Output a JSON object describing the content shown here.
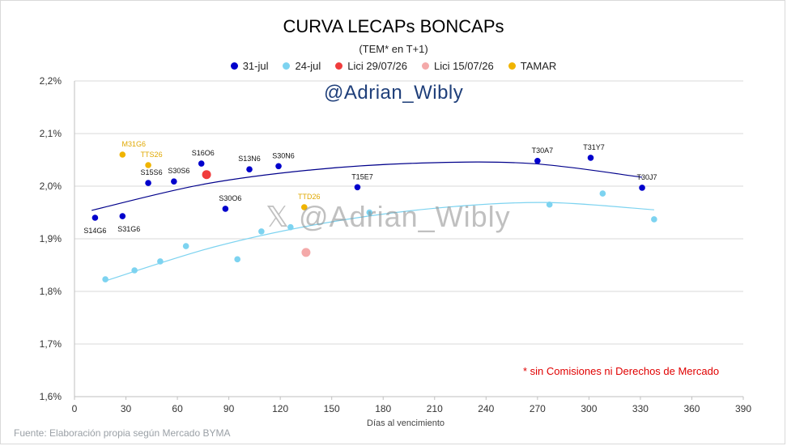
{
  "header": {
    "title": "CURVA LECAPs BONCAPs",
    "subtitle": "(TEM* en T+1)"
  },
  "legend": [
    {
      "label": "31-jul",
      "color": "#0000cc"
    },
    {
      "label": "24-jul",
      "color": "#7dd3f0"
    },
    {
      "label": "Lici 29/07/26",
      "color": "#f03c3c"
    },
    {
      "label": "Lici 15/07/26",
      "color": "#f4a9a9"
    },
    {
      "label": "TAMAR",
      "color": "#f0b400"
    }
  ],
  "watermarks": {
    "top": "@Adrian_Wibly",
    "middle": "@Adrian_Wibly",
    "middle_icon": "x-logo-icon"
  },
  "note": "* sin Comisiones ni Derechos de Mercado",
  "source": "Fuente: Elaboración propia según Mercado BYMA",
  "chart_data": {
    "type": "scatter",
    "xlabel": "Días al vencimiento",
    "ylabel": "",
    "xlim": [
      0,
      390
    ],
    "ylim": [
      1.6,
      2.2
    ],
    "x_ticks": [
      0,
      30,
      60,
      90,
      120,
      150,
      180,
      210,
      240,
      270,
      300,
      330,
      360,
      390
    ],
    "y_ticks": [
      1.6,
      1.7,
      1.8,
      1.9,
      2.0,
      2.1,
      2.2
    ],
    "y_tick_labels": [
      "1,6%",
      "1,7%",
      "1,8%",
      "1,9%",
      "2,0%",
      "2,1%",
      "2,2%"
    ],
    "grid": "horizontal",
    "legend_position": "top",
    "series": [
      {
        "name": "31-jul",
        "color": "#0000cc",
        "points": [
          {
            "x": 12,
            "y": 1.94,
            "label": "S14G6"
          },
          {
            "x": 28,
            "y": 1.943,
            "label": "S31G6"
          },
          {
            "x": 43,
            "y": 2.006,
            "label": "S15S6"
          },
          {
            "x": 58,
            "y": 2.009,
            "label": "S30S6"
          },
          {
            "x": 74,
            "y": 2.043,
            "label": "S16O6"
          },
          {
            "x": 88,
            "y": 1.957,
            "label": "S30O6"
          },
          {
            "x": 102,
            "y": 2.032,
            "label": "S13N6"
          },
          {
            "x": 119,
            "y": 2.038,
            "label": "S30N6"
          },
          {
            "x": 165,
            "y": 1.998,
            "label": "T15E7"
          },
          {
            "x": 270,
            "y": 2.048,
            "label": "T30A7"
          },
          {
            "x": 301,
            "y": 2.054,
            "label": "T31Y7"
          },
          {
            "x": 331,
            "y": 1.997,
            "label": "T30J7"
          }
        ],
        "trendline": {
          "x_start": 10,
          "x_end": 331,
          "y": [
            1.954,
            2.003,
            2.031,
            2.044,
            2.043,
            2.017
          ]
        }
      },
      {
        "name": "24-jul",
        "color": "#7dd3f0",
        "points": [
          {
            "x": 18,
            "y": 1.823
          },
          {
            "x": 35,
            "y": 1.84
          },
          {
            "x": 50,
            "y": 1.857
          },
          {
            "x": 65,
            "y": 1.886
          },
          {
            "x": 95,
            "y": 1.861
          },
          {
            "x": 109,
            "y": 1.914
          },
          {
            "x": 126,
            "y": 1.922
          },
          {
            "x": 172,
            "y": 1.95
          },
          {
            "x": 277,
            "y": 1.965
          },
          {
            "x": 308,
            "y": 1.986
          },
          {
            "x": 338,
            "y": 1.937
          }
        ],
        "trendline": {
          "x_start": 18,
          "x_end": 338,
          "y": [
            1.82,
            1.885,
            1.93,
            1.958,
            1.969,
            1.955
          ]
        }
      },
      {
        "name": "Lici 29/07/26",
        "color": "#f03c3c",
        "points": [
          {
            "x": 77,
            "y": 2.022
          }
        ]
      },
      {
        "name": "Lici 15/07/26",
        "color": "#f4a9a9",
        "points": [
          {
            "x": 135,
            "y": 1.874
          }
        ]
      },
      {
        "name": "TAMAR",
        "color": "#f0b400",
        "points": [
          {
            "x": 28,
            "y": 2.06,
            "label": "M31G6"
          },
          {
            "x": 43,
            "y": 2.04,
            "label": "TTS26"
          },
          {
            "x": 134,
            "y": 1.96,
            "label": "TTD26"
          }
        ]
      }
    ]
  }
}
